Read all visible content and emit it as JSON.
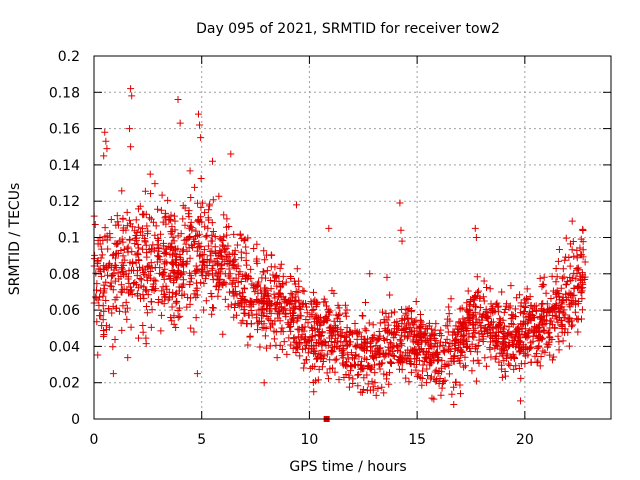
{
  "chart_data": {
    "type": "scatter",
    "title": "Day 095 of 2021, SRMTID for receiver tow2",
    "xlabel": "GPS time / hours",
    "ylabel": "SRMTID / TECUs",
    "xlim": [
      0,
      24
    ],
    "ylim": [
      0,
      0.2
    ],
    "x_ticks": [
      0,
      5,
      10,
      15,
      20
    ],
    "x_tick_labels": [
      "0",
      "5",
      "10",
      "15",
      "20"
    ],
    "y_ticks": [
      0,
      0.02,
      0.04,
      0.06,
      0.08,
      0.1,
      0.12,
      0.14,
      0.16,
      0.18,
      0.2
    ],
    "y_tick_labels": [
      "0",
      "0.02",
      "0.04",
      "0.06",
      "0.08",
      "0.1",
      "0.12",
      "0.14",
      "0.16",
      "0.18",
      "0.2"
    ],
    "grid": true,
    "marker": "plus",
    "color": "#e00000",
    "series": [
      {
        "name": "SRMTID",
        "trend": {
          "x": [
            0,
            1,
            2,
            3,
            4,
            5,
            6,
            7,
            8,
            9,
            10,
            11,
            12,
            13,
            14,
            15,
            16,
            17,
            18,
            19,
            20,
            21,
            22,
            22.8
          ],
          "y": [
            0.075,
            0.08,
            0.085,
            0.088,
            0.085,
            0.095,
            0.085,
            0.07,
            0.065,
            0.062,
            0.045,
            0.045,
            0.038,
            0.035,
            0.045,
            0.042,
            0.035,
            0.045,
            0.052,
            0.045,
            0.045,
            0.055,
            0.07,
            0.08
          ]
        },
        "spread": {
          "x": [
            0,
            2,
            5,
            8,
            10,
            15,
            20,
            22.8
          ],
          "y": [
            0.03,
            0.035,
            0.03,
            0.022,
            0.02,
            0.018,
            0.02,
            0.025
          ]
        },
        "highlight_points": [
          {
            "x": 1.7,
            "y": 0.182
          },
          {
            "x": 1.75,
            "y": 0.178
          },
          {
            "x": 3.9,
            "y": 0.176
          },
          {
            "x": 4.85,
            "y": 0.168
          },
          {
            "x": 4.9,
            "y": 0.162
          },
          {
            "x": 4.0,
            "y": 0.163
          },
          {
            "x": 0.5,
            "y": 0.158
          },
          {
            "x": 0.55,
            "y": 0.153
          },
          {
            "x": 0.6,
            "y": 0.149
          },
          {
            "x": 1.65,
            "y": 0.16
          },
          {
            "x": 1.7,
            "y": 0.15
          },
          {
            "x": 4.95,
            "y": 0.155
          },
          {
            "x": 6.35,
            "y": 0.146
          },
          {
            "x": 0.45,
            "y": 0.145
          },
          {
            "x": 5.5,
            "y": 0.142
          },
          {
            "x": 14.2,
            "y": 0.119
          },
          {
            "x": 14.25,
            "y": 0.104
          },
          {
            "x": 14.3,
            "y": 0.098
          },
          {
            "x": 17.7,
            "y": 0.105
          },
          {
            "x": 17.75,
            "y": 0.1
          },
          {
            "x": 9.4,
            "y": 0.118
          },
          {
            "x": 22.2,
            "y": 0.109
          },
          {
            "x": 22.7,
            "y": 0.104
          },
          {
            "x": 16.7,
            "y": 0.008
          },
          {
            "x": 19.8,
            "y": 0.01
          },
          {
            "x": 7.9,
            "y": 0.02
          },
          {
            "x": 13.1,
            "y": 0.013
          },
          {
            "x": 10.2,
            "y": 0.015
          },
          {
            "x": 0.9,
            "y": 0.025
          },
          {
            "x": 4.8,
            "y": 0.025
          },
          {
            "x": 10.9,
            "y": 0.105
          },
          {
            "x": 12.8,
            "y": 0.08
          },
          {
            "x": 13.6,
            "y": 0.078
          }
        ],
        "marker_square": {
          "x": 10.8,
          "y": 0.0
        }
      }
    ]
  }
}
